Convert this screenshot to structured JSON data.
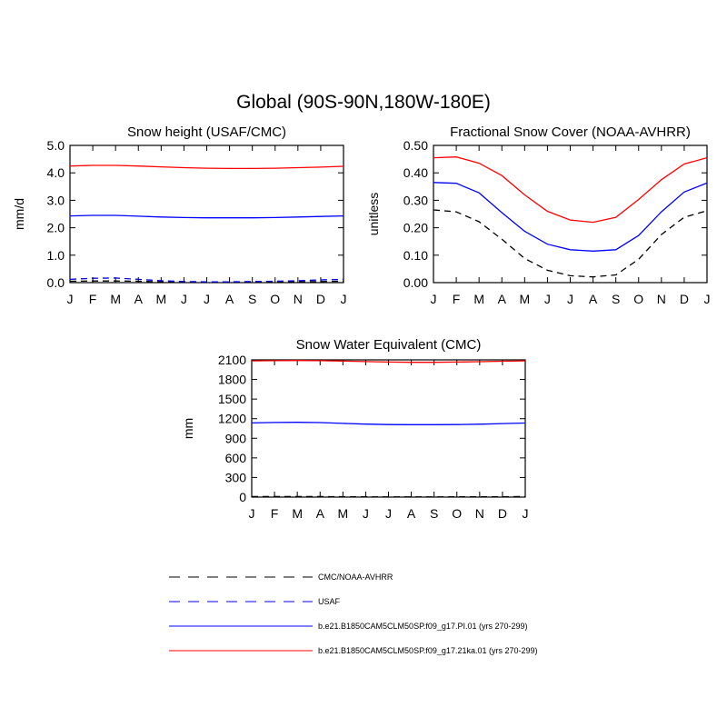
{
  "title": "Global (90S-90N,180W-180E)",
  "months": [
    "J",
    "F",
    "M",
    "A",
    "M",
    "J",
    "J",
    "A",
    "S",
    "O",
    "N",
    "D",
    "J"
  ],
  "legend": [
    {
      "label": "CMC/NOAA-AVHRR",
      "color": "#000000",
      "dash": "dashed"
    },
    {
      "label": "USAF",
      "color": "#0000ff",
      "dash": "dashed"
    },
    {
      "label": "b.e21.B1850CAM5CLM50SP.f09_g17.PI.01 (yrs 270-299)",
      "color": "#0000ff",
      "dash": "solid"
    },
    {
      "label": "b.e21.B1850CAM5CLM50SP.f09_g17.21ka.01 (yrs 270-299)",
      "color": "#ff0000",
      "dash": "solid"
    }
  ],
  "chart_data": [
    {
      "type": "line",
      "title": "Snow height (USAF/CMC)",
      "ylabel": "mm/d",
      "ylim": [
        0,
        5
      ],
      "yticks": [
        "0.0",
        "1.0",
        "2.0",
        "3.0",
        "4.0",
        "5.0"
      ],
      "categories": [
        "J",
        "F",
        "M",
        "A",
        "M",
        "J",
        "J",
        "A",
        "S",
        "O",
        "N",
        "D",
        "J"
      ],
      "series": [
        {
          "name": "b.e21.B1850CAM5CLM50SP.f09_g17.21ka.01 (yrs 270-299)",
          "color": "#ff0000",
          "dash": "solid",
          "values": [
            4.25,
            4.27,
            4.27,
            4.25,
            4.22,
            4.19,
            4.17,
            4.16,
            4.16,
            4.17,
            4.19,
            4.21,
            4.24
          ]
        },
        {
          "name": "b.e21.B1850CAM5CLM50SP.f09_g17.PI.01 (yrs 270-299)",
          "color": "#0000ff",
          "dash": "solid",
          "values": [
            2.43,
            2.45,
            2.45,
            2.42,
            2.39,
            2.37,
            2.36,
            2.36,
            2.36,
            2.37,
            2.39,
            2.41,
            2.43
          ]
        },
        {
          "name": "USAF",
          "color": "#0000ff",
          "dash": "dashed",
          "values": [
            0.12,
            0.16,
            0.17,
            0.12,
            0.07,
            0.04,
            0.03,
            0.03,
            0.04,
            0.05,
            0.07,
            0.1,
            0.12
          ]
        },
        {
          "name": "CMC/NOAA-AVHRR",
          "color": "#000000",
          "dash": "dashed",
          "values": [
            0.05,
            0.06,
            0.06,
            0.05,
            0.03,
            0.02,
            0.01,
            0.01,
            0.02,
            0.02,
            0.03,
            0.04,
            0.05
          ]
        }
      ]
    },
    {
      "type": "line",
      "title": "Fractional Snow Cover (NOAA-AVHRR)",
      "ylabel": "unitless",
      "ylim": [
        0,
        0.5
      ],
      "yticks": [
        "0.00",
        "0.10",
        "0.20",
        "0.30",
        "0.40",
        "0.50"
      ],
      "categories": [
        "J",
        "F",
        "M",
        "A",
        "M",
        "J",
        "J",
        "A",
        "S",
        "O",
        "N",
        "D",
        "J"
      ],
      "series": [
        {
          "name": "b.e21.B1850CAM5CLM50SP.f09_g17.21ka.01 (yrs 270-299)",
          "color": "#ff0000",
          "dash": "solid",
          "values": [
            0.455,
            0.458,
            0.435,
            0.39,
            0.32,
            0.26,
            0.228,
            0.22,
            0.238,
            0.303,
            0.375,
            0.432,
            0.455
          ]
        },
        {
          "name": "b.e21.B1850CAM5CLM50SP.f09_g17.PI.01 (yrs 270-299)",
          "color": "#0000ff",
          "dash": "solid",
          "values": [
            0.365,
            0.362,
            0.327,
            0.255,
            0.187,
            0.14,
            0.12,
            0.115,
            0.12,
            0.172,
            0.258,
            0.33,
            0.363
          ]
        },
        {
          "name": "CMC/NOAA-AVHRR",
          "color": "#000000",
          "dash": "dashed",
          "values": [
            0.265,
            0.258,
            0.222,
            0.158,
            0.088,
            0.045,
            0.025,
            0.021,
            0.028,
            0.085,
            0.175,
            0.238,
            0.262
          ]
        }
      ]
    },
    {
      "type": "line",
      "title": "Snow Water Equivalent (CMC)",
      "ylabel": "mm",
      "ylim": [
        0,
        2100
      ],
      "yticks": [
        "0",
        "300",
        "600",
        "900",
        "1200",
        "1500",
        "1800",
        "2100"
      ],
      "categories": [
        "J",
        "F",
        "M",
        "A",
        "M",
        "J",
        "J",
        "A",
        "S",
        "O",
        "N",
        "D",
        "J"
      ],
      "series": [
        {
          "name": "b.e21.B1850CAM5CLM50SP.f09_g17.21ka.01 (yrs 270-299)",
          "color": "#ff0000",
          "dash": "solid",
          "values": [
            2085,
            2088,
            2090,
            2088,
            2082,
            2074,
            2066,
            2062,
            2062,
            2066,
            2072,
            2079,
            2085
          ]
        },
        {
          "name": "b.e21.B1850CAM5CLM50SP.f09_g17.PI.01 (yrs 270-299)",
          "color": "#0000ff",
          "dash": "solid",
          "values": [
            1135,
            1142,
            1145,
            1140,
            1128,
            1117,
            1110,
            1108,
            1108,
            1110,
            1116,
            1125,
            1133
          ]
        },
        {
          "name": "CMC/NOAA-AVHRR",
          "color": "#000000",
          "dash": "dashed",
          "values": [
            8,
            9,
            9,
            8,
            6,
            4,
            3,
            3,
            3,
            4,
            5,
            6,
            8
          ]
        }
      ]
    }
  ]
}
